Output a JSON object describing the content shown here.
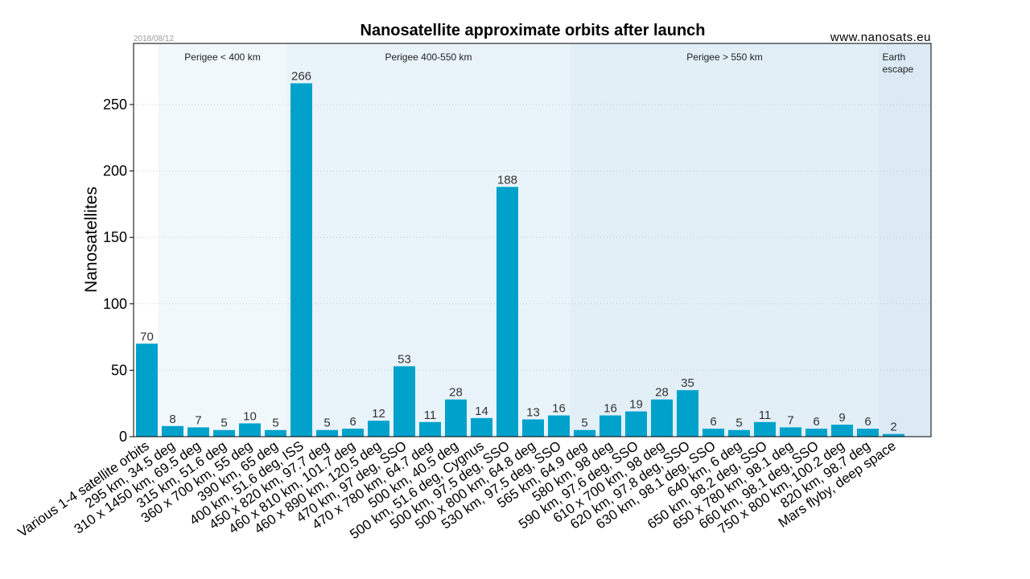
{
  "header": {
    "title": "Nanosatellite approximate orbits after launch",
    "site": "www.nanosats.eu",
    "date": "2018/08/12"
  },
  "chart_data": {
    "type": "bar",
    "title": "Nanosatellite approximate orbits after launch",
    "xlabel": "",
    "ylabel": "Nanosatellites",
    "ylim": [
      0,
      296
    ],
    "yticks": [
      0,
      50,
      100,
      150,
      200,
      250
    ],
    "grid": "horizontal dotted",
    "bar_color": "#00a2cc",
    "categories": [
      "Various 1-4 satellite orbits",
      "295 km, 34.5 deg",
      "310 x 1450 km, 69.5 deg",
      "315 km, 51.6 deg",
      "360 x 700 km, 55 deg",
      "390 km, 65 deg",
      "400 km, 51.6 deg, ISS",
      "450 x 820 km, 97.7 deg",
      "460 x 810 km, 101.7 deg",
      "460 x 890 km, 120.5 deg",
      "470 km, 97 deg, SSO",
      "470 x 780 km, 64.7 deg",
      "500 km, 40.5 deg",
      "500 km, 51.6 deg, Cygnus",
      "500 km, 97.5 deg, SSO",
      "500 x 800 km, 64.8 deg",
      "530 km, 97.5 deg, SSO",
      "565 km, 64.9 deg",
      "580 km, 98 deg",
      "590 km, 97.6 deg, SSO",
      "610 x 700 km, 98 deg",
      "620 km, 97.8 deg, SSO",
      "630 km, 98.1 deg, SSO",
      "640 km, 6 deg",
      "650 km, 98.2 deg, SSO",
      "650 x 780 km, 98.1 deg",
      "660 km, 98.1 deg, SSO",
      "750 x 800 km, 100.2 deg",
      "820 km, 98.7 deg",
      "Mars flyby, deep space"
    ],
    "values": [
      70,
      8,
      7,
      5,
      10,
      5,
      266,
      5,
      6,
      12,
      53,
      11,
      28,
      14,
      188,
      13,
      16,
      5,
      16,
      19,
      28,
      35,
      6,
      5,
      11,
      7,
      6,
      9,
      6,
      2
    ],
    "regions": [
      {
        "label": "",
        "from": 0,
        "to": 0,
        "color": "#ffffff"
      },
      {
        "label": "Perigee < 400 km",
        "from": 1,
        "to": 5,
        "color": "#f1f8fc"
      },
      {
        "label": "Perigee 400-550 km",
        "from": 6,
        "to": 16,
        "color": "#e9f3fa"
      },
      {
        "label": "Perigee > 550 km",
        "from": 17,
        "to": 28,
        "color": "#e2eff7"
      },
      {
        "label": "Earth escape",
        "from": 29,
        "to": 29,
        "color": "#dbeaf5"
      }
    ]
  }
}
